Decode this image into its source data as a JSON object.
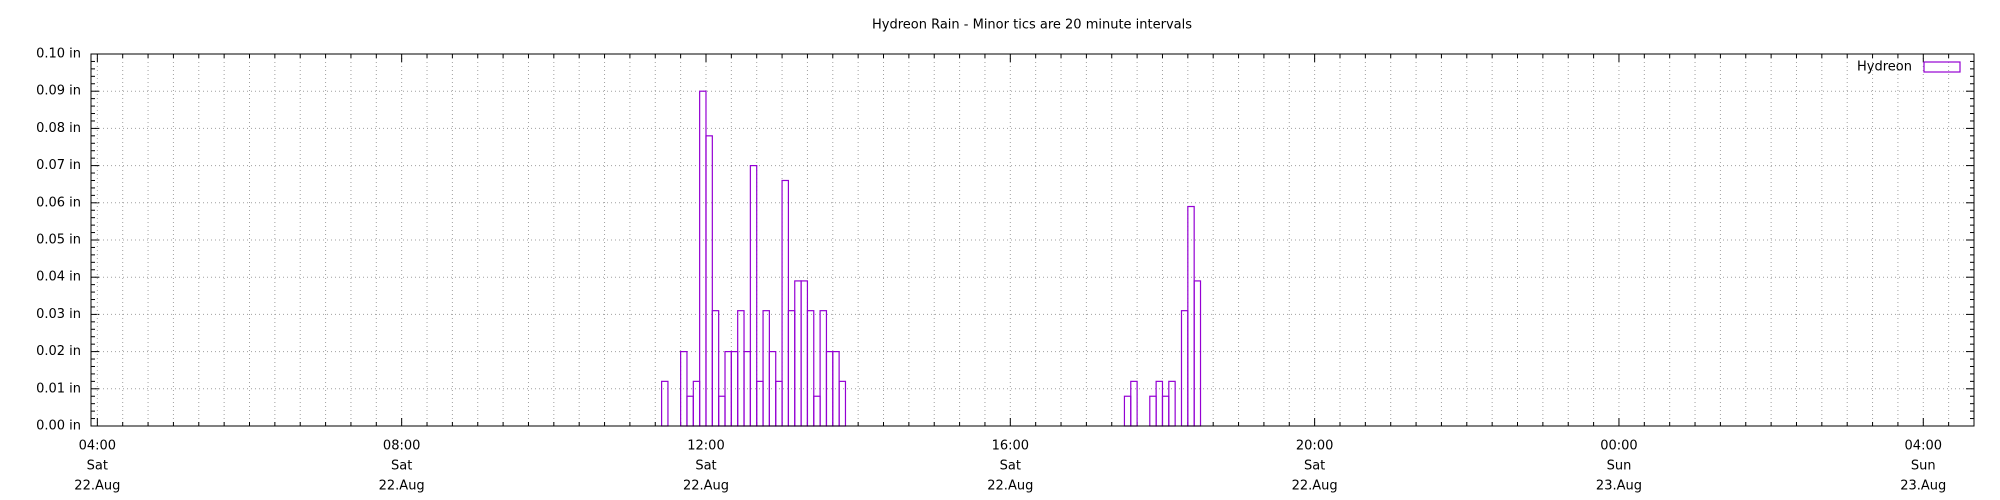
{
  "chart_data": {
    "type": "bar",
    "title": "Hydreon Rain - Minor tics are 20 minute intervals",
    "x": [
      "22.Aug 11:25",
      "22.Aug 11:40",
      "22.Aug 11:45",
      "22.Aug 11:50",
      "22.Aug 11:55",
      "22.Aug 12:00",
      "22.Aug 12:05",
      "22.Aug 12:10",
      "22.Aug 12:15",
      "22.Aug 12:20",
      "22.Aug 12:25",
      "22.Aug 12:30",
      "22.Aug 12:35",
      "22.Aug 12:40",
      "22.Aug 12:45",
      "22.Aug 12:50",
      "22.Aug 12:55",
      "22.Aug 13:00",
      "22.Aug 13:05",
      "22.Aug 13:10",
      "22.Aug 13:15",
      "22.Aug 13:20",
      "22.Aug 13:25",
      "22.Aug 13:30",
      "22.Aug 13:35",
      "22.Aug 13:40",
      "22.Aug 13:45",
      "22.Aug 17:30",
      "22.Aug 17:35",
      "22.Aug 17:50",
      "22.Aug 17:55",
      "22.Aug 18:00",
      "22.Aug 18:05",
      "22.Aug 18:15",
      "22.Aug 18:20",
      "22.Aug 18:25"
    ],
    "series": [
      {
        "name": "Hydreon",
        "color": "#9400d3",
        "values": [
          0.012,
          0.02,
          0.008,
          0.012,
          0.09,
          0.078,
          0.031,
          0.008,
          0.02,
          0.02,
          0.031,
          0.02,
          0.07,
          0.012,
          0.031,
          0.02,
          0.012,
          0.066,
          0.031,
          0.039,
          0.039,
          0.031,
          0.008,
          0.031,
          0.02,
          0.02,
          0.012,
          0.008,
          0.012,
          0.008,
          0.012,
          0.008,
          0.012,
          0.031,
          0.059,
          0.039
        ]
      }
    ],
    "xlim": [
      "22.Aug 03:55",
      "23.Aug 04:40"
    ],
    "xticks": [
      {
        "value": "22.Aug 04:00",
        "label": [
          "04:00",
          "Sat",
          "22.Aug"
        ]
      },
      {
        "value": "22.Aug 08:00",
        "label": [
          "08:00",
          "Sat",
          "22.Aug"
        ]
      },
      {
        "value": "22.Aug 12:00",
        "label": [
          "12:00",
          "Sat",
          "22.Aug"
        ]
      },
      {
        "value": "22.Aug 16:00",
        "label": [
          "16:00",
          "Sat",
          "22.Aug"
        ]
      },
      {
        "value": "22.Aug 20:00",
        "label": [
          "20:00",
          "Sat",
          "22.Aug"
        ]
      },
      {
        "value": "23.Aug 00:00",
        "label": [
          "00:00",
          "Sun",
          "23.Aug"
        ]
      },
      {
        "value": "23.Aug 04:00",
        "label": [
          "04:00",
          "Sun",
          "23.Aug"
        ]
      }
    ],
    "ylim": [
      0,
      0.1
    ],
    "yticks": [
      {
        "value": 0,
        "label": "0.00 in"
      },
      {
        "value": 0.01,
        "label": "0.01 in"
      },
      {
        "value": 0.02,
        "label": "0.02 in"
      },
      {
        "value": 0.03,
        "label": "0.03 in"
      },
      {
        "value": 0.04,
        "label": "0.04 in"
      },
      {
        "value": 0.05,
        "label": "0.05 in"
      },
      {
        "value": 0.06,
        "label": "0.06 in"
      },
      {
        "value": 0.07,
        "label": "0.07 in"
      },
      {
        "value": 0.08,
        "label": "0.08 in"
      },
      {
        "value": 0.09,
        "label": "0.09 in"
      },
      {
        "value": 0.1,
        "label": "0.10 in"
      }
    ],
    "grid": true,
    "legend": "top-right"
  }
}
